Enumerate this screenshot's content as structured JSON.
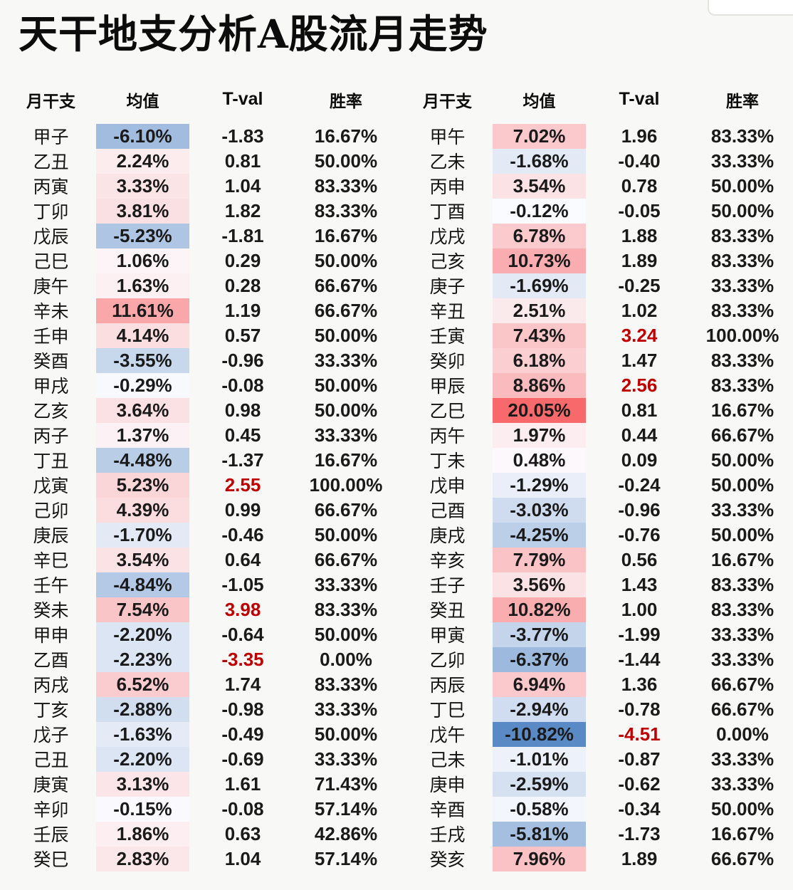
{
  "chart_data": {
    "type": "table",
    "title": "天干地支分析A股流月走势",
    "columns": [
      "月干支",
      "均值",
      "T-val",
      "胜率"
    ],
    "column_keys": [
      "ganzhi",
      "mean",
      "tval",
      "winrate"
    ],
    "color_scale": {
      "applies_to": "均值",
      "min_value": -10.82,
      "mid_value": 0,
      "max_value": 20.05,
      "min_color": "#5A8AC6",
      "mid_color": "#FCFCFF",
      "max_color": "#F8696B"
    },
    "tval_highlight": {
      "threshold": 2.5,
      "color": "#C00000"
    },
    "tables": [
      {
        "rows": [
          [
            "甲子",
            "-6.10%",
            "-1.83",
            "16.67%"
          ],
          [
            "乙丑",
            "2.24%",
            "0.81",
            "50.00%"
          ],
          [
            "丙寅",
            "3.33%",
            "1.04",
            "83.33%"
          ],
          [
            "丁卯",
            "3.81%",
            "1.82",
            "83.33%"
          ],
          [
            "戊辰",
            "-5.23%",
            "-1.81",
            "16.67%"
          ],
          [
            "己巳",
            "1.06%",
            "0.29",
            "50.00%"
          ],
          [
            "庚午",
            "1.63%",
            "0.28",
            "66.67%"
          ],
          [
            "辛未",
            "11.61%",
            "1.19",
            "66.67%"
          ],
          [
            "壬申",
            "4.14%",
            "0.57",
            "50.00%"
          ],
          [
            "癸酉",
            "-3.55%",
            "-0.96",
            "33.33%"
          ],
          [
            "甲戌",
            "-0.29%",
            "-0.08",
            "50.00%"
          ],
          [
            "乙亥",
            "3.64%",
            "0.98",
            "50.00%"
          ],
          [
            "丙子",
            "1.37%",
            "0.45",
            "33.33%"
          ],
          [
            "丁丑",
            "-4.48%",
            "-1.37",
            "16.67%"
          ],
          [
            "戊寅",
            "5.23%",
            "2.55",
            "100.00%"
          ],
          [
            "己卯",
            "4.39%",
            "0.99",
            "66.67%"
          ],
          [
            "庚辰",
            "-1.70%",
            "-0.46",
            "50.00%"
          ],
          [
            "辛巳",
            "3.54%",
            "0.64",
            "66.67%"
          ],
          [
            "壬午",
            "-4.84%",
            "-1.05",
            "33.33%"
          ],
          [
            "癸未",
            "7.54%",
            "3.98",
            "83.33%"
          ],
          [
            "甲申",
            "-2.20%",
            "-0.64",
            "50.00%"
          ],
          [
            "乙酉",
            "-2.23%",
            "-3.35",
            "0.00%"
          ],
          [
            "丙戌",
            "6.52%",
            "1.74",
            "83.33%"
          ],
          [
            "丁亥",
            "-2.88%",
            "-0.98",
            "33.33%"
          ],
          [
            "戊子",
            "-1.63%",
            "-0.49",
            "50.00%"
          ],
          [
            "己丑",
            "-2.20%",
            "-0.69",
            "33.33%"
          ],
          [
            "庚寅",
            "3.13%",
            "1.61",
            "71.43%"
          ],
          [
            "辛卯",
            "-0.15%",
            "-0.08",
            "57.14%"
          ],
          [
            "壬辰",
            "1.86%",
            "0.63",
            "42.86%"
          ],
          [
            "癸巳",
            "2.83%",
            "1.04",
            "57.14%"
          ]
        ]
      },
      {
        "rows": [
          [
            "甲午",
            "7.02%",
            "1.96",
            "83.33%"
          ],
          [
            "乙未",
            "-1.68%",
            "-0.40",
            "33.33%"
          ],
          [
            "丙申",
            "3.54%",
            "0.78",
            "50.00%"
          ],
          [
            "丁酉",
            "-0.12%",
            "-0.05",
            "50.00%"
          ],
          [
            "戊戌",
            "6.78%",
            "1.88",
            "83.33%"
          ],
          [
            "己亥",
            "10.73%",
            "1.89",
            "83.33%"
          ],
          [
            "庚子",
            "-1.69%",
            "-0.25",
            "33.33%"
          ],
          [
            "辛丑",
            "2.51%",
            "1.02",
            "83.33%"
          ],
          [
            "壬寅",
            "7.43%",
            "3.24",
            "100.00%"
          ],
          [
            "癸卯",
            "6.18%",
            "1.47",
            "83.33%"
          ],
          [
            "甲辰",
            "8.86%",
            "2.56",
            "83.33%"
          ],
          [
            "乙巳",
            "20.05%",
            "0.81",
            "16.67%"
          ],
          [
            "丙午",
            "1.97%",
            "0.44",
            "66.67%"
          ],
          [
            "丁未",
            "0.48%",
            "0.09",
            "50.00%"
          ],
          [
            "戊申",
            "-1.29%",
            "-0.24",
            "50.00%"
          ],
          [
            "己酉",
            "-3.03%",
            "-0.96",
            "33.33%"
          ],
          [
            "庚戌",
            "-4.25%",
            "-0.76",
            "50.00%"
          ],
          [
            "辛亥",
            "7.79%",
            "0.56",
            "16.67%"
          ],
          [
            "壬子",
            "3.56%",
            "1.43",
            "83.33%"
          ],
          [
            "癸丑",
            "10.82%",
            "1.00",
            "83.33%"
          ],
          [
            "甲寅",
            "-3.77%",
            "-1.99",
            "33.33%"
          ],
          [
            "乙卯",
            "-6.37%",
            "-1.44",
            "33.33%"
          ],
          [
            "丙辰",
            "6.94%",
            "1.36",
            "66.67%"
          ],
          [
            "丁巳",
            "-2.94%",
            "-0.78",
            "66.67%"
          ],
          [
            "戊午",
            "-10.82%",
            "-4.51",
            "0.00%"
          ],
          [
            "己未",
            "-1.01%",
            "-0.87",
            "33.33%"
          ],
          [
            "庚申",
            "-2.59%",
            "-0.62",
            "33.33%"
          ],
          [
            "辛酉",
            "-0.58%",
            "-0.34",
            "50.00%"
          ],
          [
            "壬戌",
            "-5.81%",
            "-1.73",
            "16.67%"
          ],
          [
            "癸亥",
            "7.96%",
            "1.89",
            "66.67%"
          ]
        ]
      }
    ]
  }
}
